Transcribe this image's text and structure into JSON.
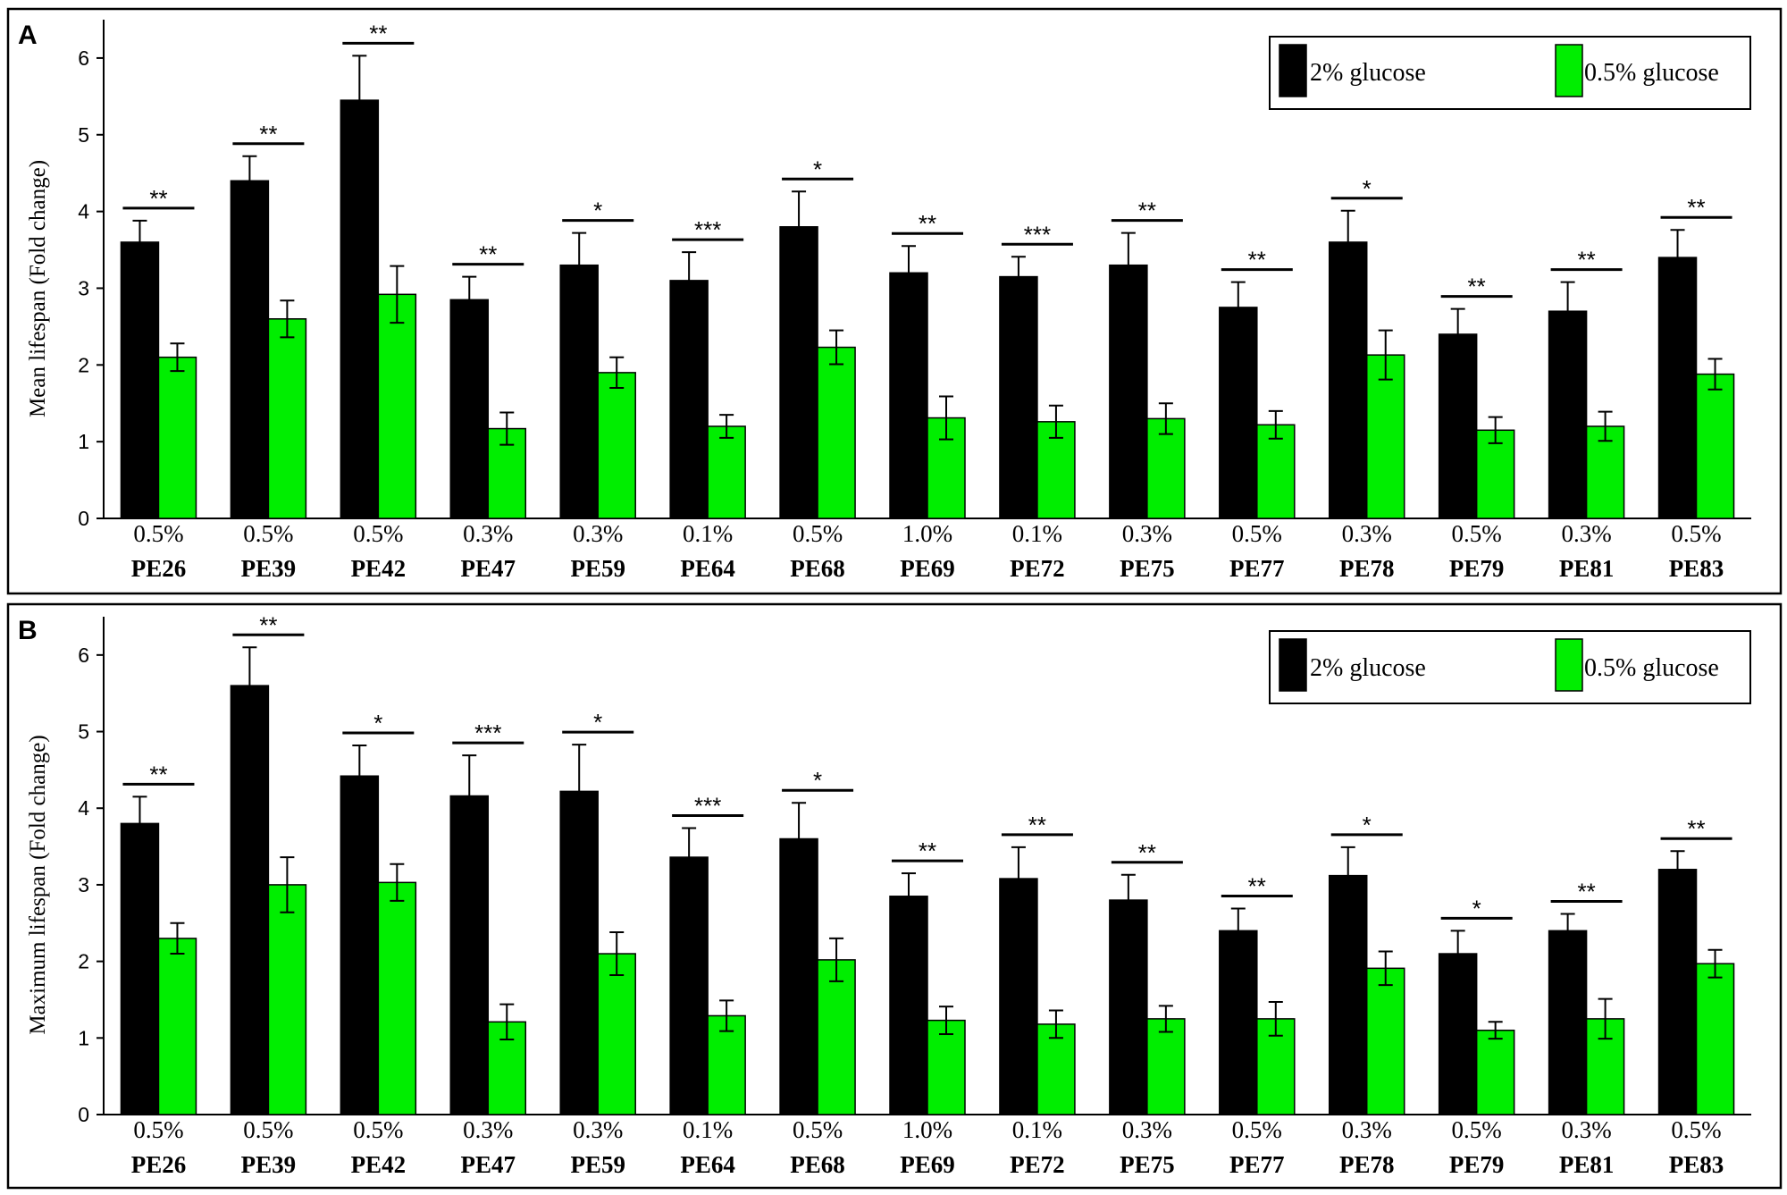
{
  "colors": {
    "series_2pct": "#000000",
    "series_05pct": "#00ee00"
  },
  "legend": [
    "2% glucose",
    "0.5% glucose"
  ],
  "chart_data": [
    {
      "type": "bar",
      "panel": "A",
      "ylabel": "Mean lifespan (Fold change)",
      "ylim": [
        0,
        6.5
      ],
      "yticks": [
        0,
        1,
        2,
        3,
        4,
        5,
        6
      ],
      "categories": [
        "PE26",
        "PE39",
        "PE42",
        "PE47",
        "PE59",
        "PE64",
        "PE68",
        "PE69",
        "PE72",
        "PE75",
        "PE77",
        "PE78",
        "PE79",
        "PE81",
        "PE83"
      ],
      "concentrations": [
        "0.5%",
        "0.5%",
        "0.5%",
        "0.3%",
        "0.3%",
        "0.1%",
        "0.5%",
        "1.0%",
        "0.1%",
        "0.3%",
        "0.5%",
        "0.3%",
        "0.5%",
        "0.3%",
        "0.5%"
      ],
      "series": [
        {
          "name": "2% glucose",
          "values": [
            3.6,
            4.4,
            5.45,
            2.85,
            3.3,
            3.1,
            3.8,
            3.2,
            3.15,
            3.3,
            2.75,
            3.6,
            2.4,
            2.7,
            3.4
          ],
          "errors": [
            0.28,
            0.32,
            0.58,
            0.3,
            0.42,
            0.37,
            0.46,
            0.35,
            0.26,
            0.42,
            0.33,
            0.41,
            0.33,
            0.38,
            0.36
          ]
        },
        {
          "name": "0.5% glucose",
          "values": [
            2.1,
            2.6,
            2.92,
            1.17,
            1.9,
            1.2,
            2.23,
            1.31,
            1.26,
            1.3,
            1.22,
            2.13,
            1.15,
            1.2,
            1.88
          ],
          "errors": [
            0.18,
            0.24,
            0.37,
            0.21,
            0.2,
            0.15,
            0.22,
            0.28,
            0.21,
            0.2,
            0.18,
            0.32,
            0.17,
            0.19,
            0.2
          ]
        }
      ],
      "significance": [
        "**",
        "**",
        "**",
        "**",
        "*",
        "***",
        "*",
        "**",
        "***",
        "**",
        "**",
        "*",
        "**",
        "**",
        "**"
      ],
      "grid": false,
      "legend_position": "top-right"
    },
    {
      "type": "bar",
      "panel": "B",
      "ylabel": "Maximum lifespan (Fold change)",
      "ylim": [
        0,
        6.5
      ],
      "yticks": [
        0,
        1,
        2,
        3,
        4,
        5,
        6
      ],
      "categories": [
        "PE26",
        "PE39",
        "PE42",
        "PE47",
        "PE59",
        "PE64",
        "PE68",
        "PE69",
        "PE72",
        "PE75",
        "PE77",
        "PE78",
        "PE79",
        "PE81",
        "PE83"
      ],
      "concentrations": [
        "0.5%",
        "0.5%",
        "0.5%",
        "0.3%",
        "0.3%",
        "0.1%",
        "0.5%",
        "1.0%",
        "0.1%",
        "0.3%",
        "0.5%",
        "0.3%",
        "0.5%",
        "0.3%",
        "0.5%"
      ],
      "series": [
        {
          "name": "2% glucose",
          "values": [
            3.8,
            5.6,
            4.42,
            4.16,
            4.22,
            3.36,
            3.6,
            2.85,
            3.08,
            2.8,
            2.4,
            3.12,
            2.1,
            2.4,
            3.2
          ],
          "errors": [
            0.35,
            0.5,
            0.4,
            0.53,
            0.61,
            0.38,
            0.47,
            0.3,
            0.41,
            0.33,
            0.29,
            0.37,
            0.3,
            0.22,
            0.24
          ]
        },
        {
          "name": "0.5% glucose",
          "values": [
            2.3,
            3.0,
            3.03,
            1.21,
            2.1,
            1.29,
            2.02,
            1.23,
            1.18,
            1.25,
            1.25,
            1.91,
            1.1,
            1.25,
            1.97
          ],
          "errors": [
            0.2,
            0.36,
            0.24,
            0.23,
            0.28,
            0.2,
            0.28,
            0.18,
            0.18,
            0.17,
            0.22,
            0.22,
            0.11,
            0.26,
            0.18
          ]
        }
      ],
      "significance": [
        "**",
        "**",
        "*",
        "***",
        "*",
        "***",
        "*",
        "**",
        "**",
        "**",
        "**",
        "*",
        "*",
        "**",
        "**"
      ],
      "grid": false,
      "legend_position": "top-right"
    }
  ]
}
